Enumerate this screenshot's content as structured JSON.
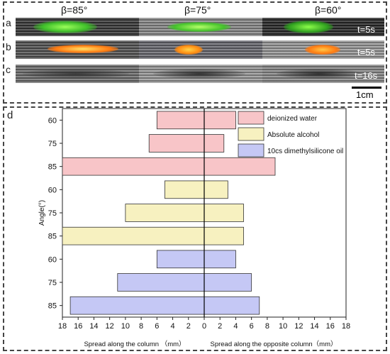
{
  "panels": {
    "a": "a",
    "b": "b",
    "c": "c",
    "d": "d"
  },
  "photos": {
    "betas": [
      "β=85°",
      "β=75°",
      "β=60°"
    ],
    "time_labels": [
      "t=5s",
      "t=5s",
      "t=16s"
    ],
    "scale_label": "1cm"
  },
  "colors": {
    "water": "#f8c5c8",
    "alcohol": "#f7f1c0",
    "oil": "#c5c8f5",
    "border": "#333333"
  },
  "chart_data": {
    "type": "bar",
    "orientation": "horizontal-diverging",
    "ylabel": "Angle(°)",
    "xlabel_left": "Spread along the column （mm）",
    "xlabel_right": "Spread along the opposite column（mm）",
    "xlim": [
      -18,
      18
    ],
    "xticks": [
      "18",
      "16",
      "14",
      "12",
      "10",
      "8",
      "6",
      "4",
      "2",
      "0",
      "2",
      "4",
      "6",
      "8",
      "10",
      "12",
      "14",
      "16",
      "18"
    ],
    "categories": [
      "60",
      "75",
      "85",
      "60",
      "75",
      "85",
      "60",
      "75",
      "85"
    ],
    "series": [
      {
        "name": "deionized water",
        "angles": [
          "60",
          "75",
          "85"
        ],
        "along": [
          6,
          7,
          18
        ],
        "opposite": [
          4,
          2.5,
          9
        ]
      },
      {
        "name": "Absolute alcohol",
        "angles": [
          "60",
          "75",
          "85"
        ],
        "along": [
          5,
          10,
          18
        ],
        "opposite": [
          3,
          5,
          5
        ]
      },
      {
        "name": "10cs dimethylsilicone oil",
        "angles": [
          "60",
          "75",
          "85"
        ],
        "along": [
          6,
          11,
          17
        ],
        "opposite": [
          4,
          6,
          7
        ]
      }
    ],
    "legend_position": "top-right"
  }
}
